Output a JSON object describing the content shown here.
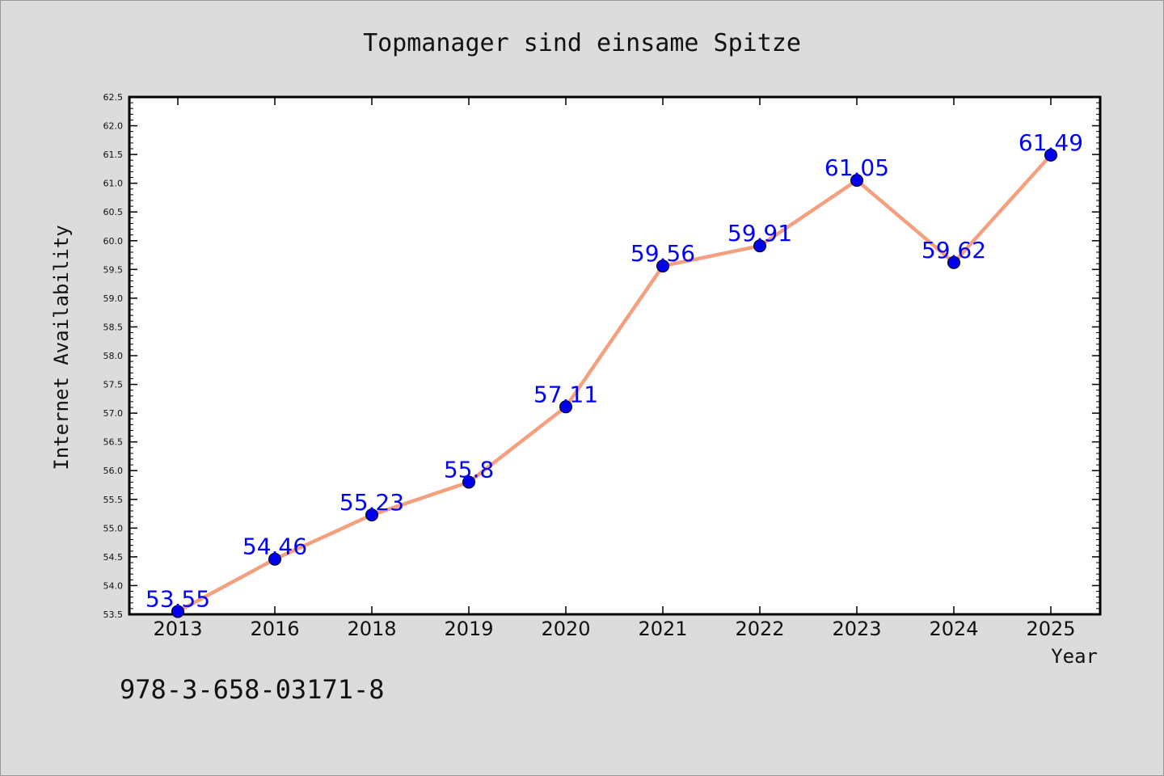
{
  "chart_data": {
    "type": "line",
    "title": "Topmanager sind einsame Spitze",
    "xlabel": "Year",
    "ylabel": "Internet Availability",
    "categories": [
      "2013",
      "2016",
      "2018",
      "2019",
      "2020",
      "2021",
      "2022",
      "2023",
      "2024",
      "2025"
    ],
    "values": [
      53.55,
      54.46,
      55.23,
      55.8,
      57.11,
      59.56,
      59.91,
      61.05,
      59.62,
      61.49
    ],
    "data_labels": [
      "53.55",
      "54.46",
      "55.23",
      "55.8",
      "57.11",
      "59.56",
      "59.91",
      "61.05",
      "59.62",
      "61.49"
    ],
    "ylim": [
      53.5,
      62.5
    ],
    "y_ticks": [
      "53.5",
      "54.0",
      "54.5",
      "55.0",
      "55.5",
      "56.0",
      "56.5",
      "57.0",
      "57.5",
      "58.0",
      "58.5",
      "59.0",
      "59.5",
      "60.0",
      "60.5",
      "61.0",
      "61.5",
      "62.0",
      "62.5"
    ],
    "grid": false,
    "line_color": "#f4a07f",
    "marker_color": "#0000ee",
    "label_color": "#0000ff"
  },
  "footer_text": "978-3-658-03171-8"
}
